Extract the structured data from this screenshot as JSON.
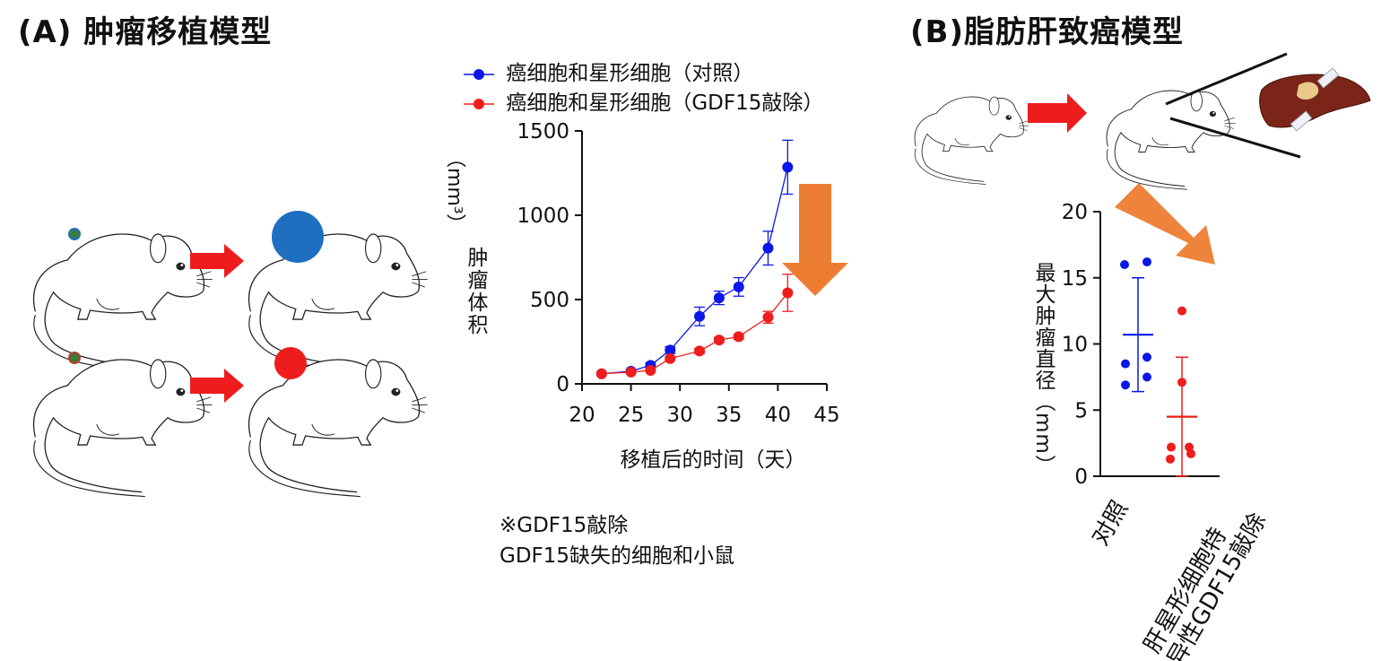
{
  "panels": {
    "a_title": "(A) 肿瘤移植模型",
    "b_title": "(B)脂肪肝致癌模型"
  },
  "colors": {
    "blue": "#0b17e8",
    "red": "#ee1c1c",
    "orange": "#ed7d31",
    "tumor_blue": "#1f6fc0"
  },
  "note": {
    "line1": "※GDF15敲除",
    "line2": "GDF15缺失的细胞和小鼠"
  },
  "chart_data": [
    {
      "type": "line",
      "xlabel": "移植后的时间（天）",
      "ylabel_main": "肿瘤体积",
      "ylabel_unit": "（mm³）",
      "xlim": [
        20,
        45
      ],
      "ylim": [
        0,
        1500
      ],
      "xticks": [
        20,
        25,
        30,
        35,
        40,
        45
      ],
      "yticks": [
        0,
        500,
        1000,
        1500
      ],
      "series": [
        {
          "name": "癌细胞和星形细胞（对照）",
          "color": "#0b17e8",
          "x": [
            22,
            25,
            27,
            29,
            32,
            34,
            36,
            39,
            41
          ],
          "y": [
            60,
            75,
            110,
            200,
            400,
            510,
            575,
            805,
            1285
          ],
          "err": [
            0,
            10,
            15,
            20,
            55,
            40,
            55,
            100,
            160
          ]
        },
        {
          "name": "癌细胞和星形细胞（GDF15敲除）",
          "color": "#ee1c1c",
          "x": [
            22,
            25,
            27,
            29,
            32,
            34,
            36,
            39,
            41
          ],
          "y": [
            60,
            70,
            80,
            150,
            195,
            260,
            280,
            395,
            540
          ],
          "err": [
            0,
            0,
            0,
            10,
            15,
            15,
            15,
            35,
            110
          ]
        }
      ]
    },
    {
      "type": "scatter",
      "ylabel": "最大肿瘤直径（mm）",
      "ylim": [
        0,
        20
      ],
      "yticks": [
        0,
        5,
        10,
        15,
        20
      ],
      "categories": [
        "对照",
        "肝星形细胞特异性GDF15敲除"
      ],
      "series": [
        {
          "name": "对照",
          "color": "#0b17e8",
          "values": [
            16.0,
            16.2,
            9.0,
            8.5,
            7.5,
            6.9
          ],
          "mean": 10.7,
          "sd_upper": 15.0,
          "sd_lower": 6.4
        },
        {
          "name": "肝星形细胞特异性GDF15敲除",
          "color": "#ee1c1c",
          "values": [
            12.5,
            7.1,
            2.2,
            2.2,
            1.7,
            1.3
          ],
          "mean": 4.5,
          "sd_upper": 9.0,
          "sd_lower": 0
        }
      ]
    }
  ]
}
